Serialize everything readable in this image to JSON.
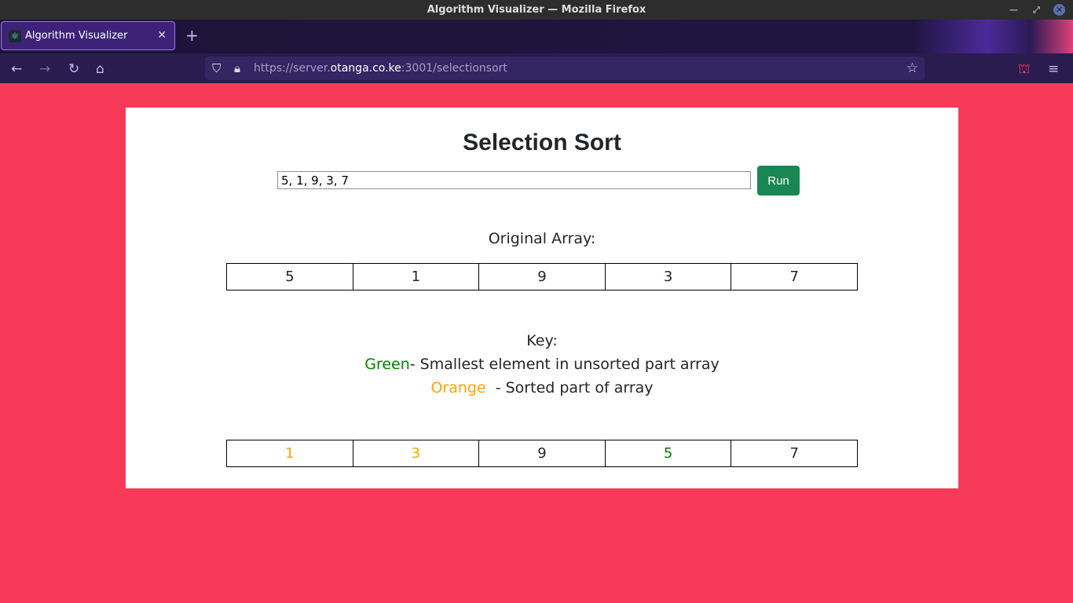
{
  "window": {
    "title": "Algorithm Visualizer — Mozilla Firefox"
  },
  "tab": {
    "title": "Algorithm Visualizer",
    "favicon": "react-icon"
  },
  "url": {
    "prefix": "https://server.",
    "domain": "otanga.co.ke",
    "suffix": ":3001/selectionsort"
  },
  "page": {
    "title": "Selection Sort",
    "input_value": "5, 1, 9, 3, 7",
    "run_label": "Run",
    "original_label": "Original Array:",
    "original": [
      "5",
      "1",
      "9",
      "3",
      "7"
    ],
    "key_label": "Key:",
    "key_green": "Green",
    "key_green_desc": "- Smallest element in unsorted part array",
    "key_orange": "Orange",
    "key_orange_desc": " - Sorted part of array",
    "result": [
      {
        "v": "1",
        "c": "orange"
      },
      {
        "v": "3",
        "c": "orange"
      },
      {
        "v": "9",
        "c": "black"
      },
      {
        "v": "5",
        "c": "green"
      },
      {
        "v": "7",
        "c": "black"
      }
    ],
    "colors": {
      "green": "#008000",
      "orange": "#ffa500",
      "background": "#f73a58",
      "button": "#198754"
    }
  }
}
